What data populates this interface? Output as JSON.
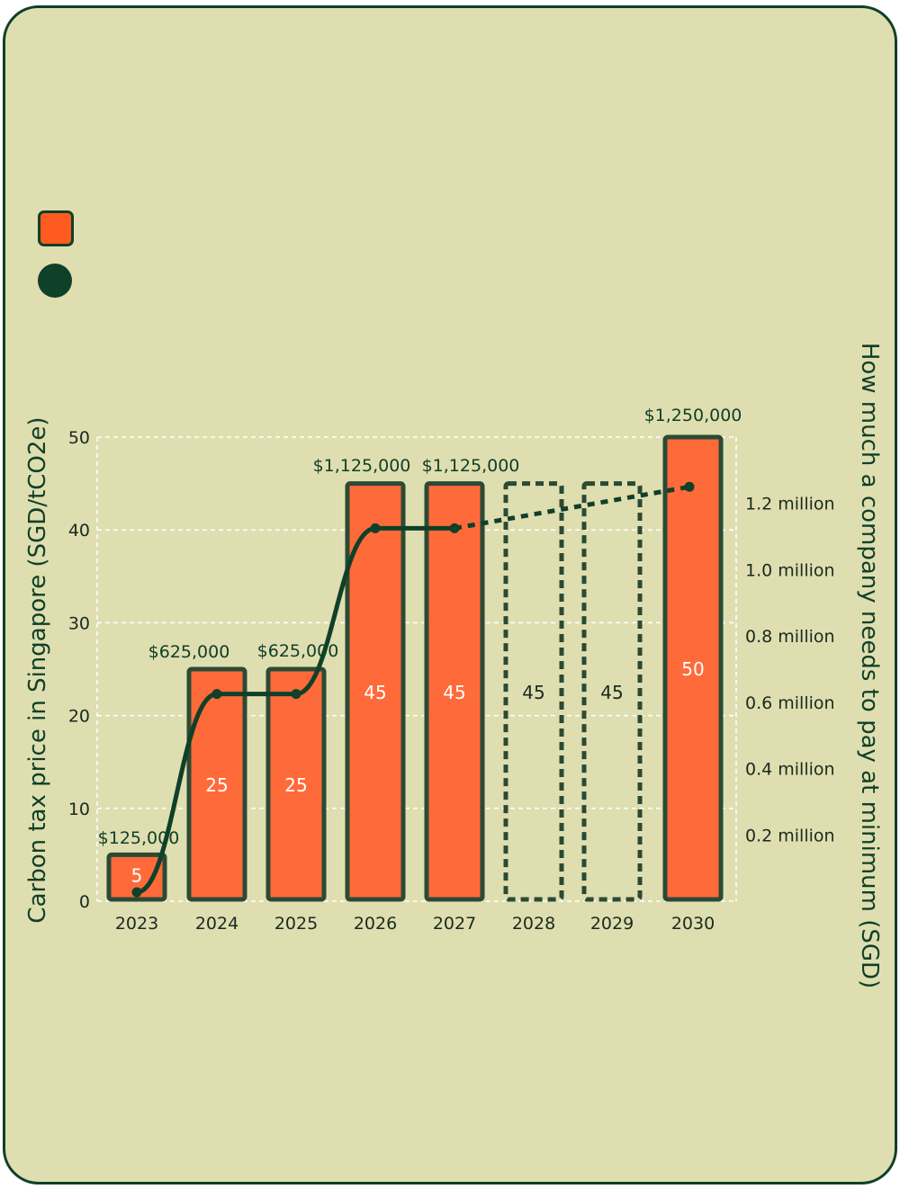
{
  "legend": {
    "bar_label": "",
    "line_label": ""
  },
  "colors": {
    "card_background": "#dfdeb0",
    "bar_fill": "#ff6a3a",
    "outline": "#2b4a34",
    "line": "#0f4028",
    "grid": "#ffffff"
  },
  "chart_data": {
    "type": "bar",
    "title": "",
    "categories": [
      "2023",
      "2024",
      "2025",
      "2026",
      "2027",
      "2028",
      "2029",
      "2030"
    ],
    "series": [
      {
        "axis": "left",
        "values": [
          5,
          25,
          25,
          45,
          45,
          45,
          45,
          50
        ],
        "value_labels": [
          "5",
          "25",
          "25",
          "45",
          "45",
          "45",
          "45",
          "50"
        ],
        "projected": [
          false,
          false,
          false,
          false,
          false,
          true,
          true,
          false
        ]
      },
      {
        "axis": "right",
        "type": "line",
        "x": [
          "2023",
          "2024",
          "2025",
          "2026",
          "2027",
          "2030"
        ],
        "values": [
          125000,
          625000,
          625000,
          1125000,
          1125000,
          1250000
        ],
        "value_labels": [
          "$125,000",
          "$625,000",
          "$625,000",
          "$1,125,000",
          "$1,125,000",
          "$1,250,000"
        ],
        "dashed_after": "2027"
      }
    ],
    "ylabel": "Carbon tax price in Singapore (SGD/tCO2e)",
    "ylim": [
      0,
      50
    ],
    "yticks": [
      0,
      10,
      20,
      30,
      40,
      50
    ],
    "ylabel_right": "How much a company needs to pay at minimum (SGD)",
    "y2lim": [
      0,
      1400000
    ],
    "y2ticks": [
      200000,
      400000,
      600000,
      800000,
      1000000,
      1200000
    ],
    "y2tick_labels": [
      "0.2 million",
      "0.4 million",
      "0.6 million",
      "0.8 million",
      "1.0 million",
      "1.2 million"
    ],
    "grid": true
  }
}
